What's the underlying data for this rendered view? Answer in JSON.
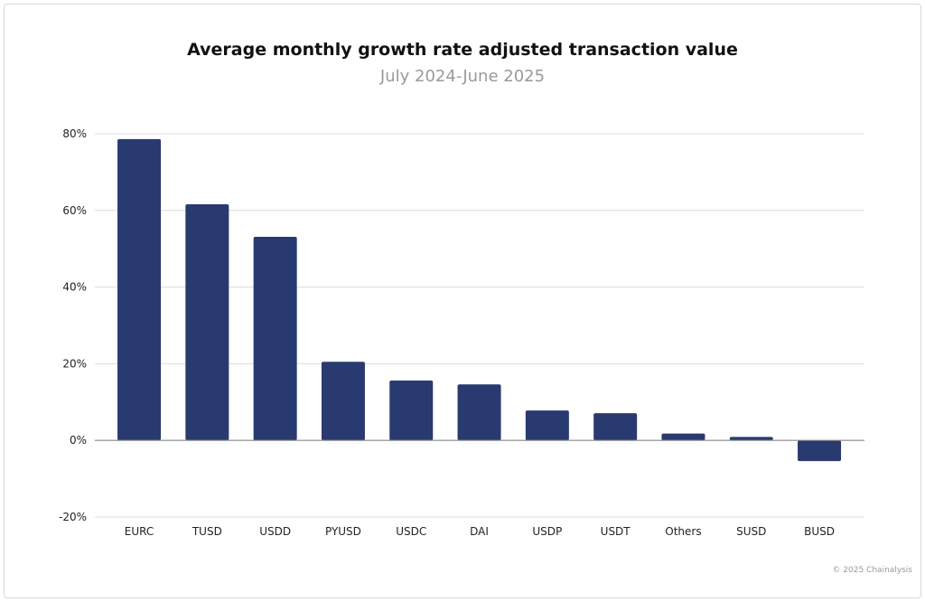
{
  "chart_data": {
    "type": "bar",
    "title": "Average monthly growth rate adjusted transaction value",
    "subtitle": "July 2024-June 2025",
    "categories": [
      "EURC",
      "TUSD",
      "USDD",
      "PYUSD",
      "USDC",
      "DAI",
      "USDP",
      "USDT",
      "Others",
      "SUSD",
      "BUSD"
    ],
    "values": [
      78.6,
      61.6,
      53.1,
      20.5,
      15.6,
      14.6,
      7.8,
      7.1,
      1.8,
      0.9,
      -5.4
    ],
    "unit": "%",
    "ylim": [
      -20,
      80
    ],
    "yticks": [
      -20,
      0,
      20,
      40,
      60,
      80
    ],
    "ytick_labels": [
      "-20%",
      "0%",
      "20%",
      "40%",
      "60%",
      "80%"
    ],
    "grid": true,
    "bar_color": "#283a70",
    "xlabel": "",
    "ylabel": ""
  },
  "credit": "© 2025 Chainalysis"
}
